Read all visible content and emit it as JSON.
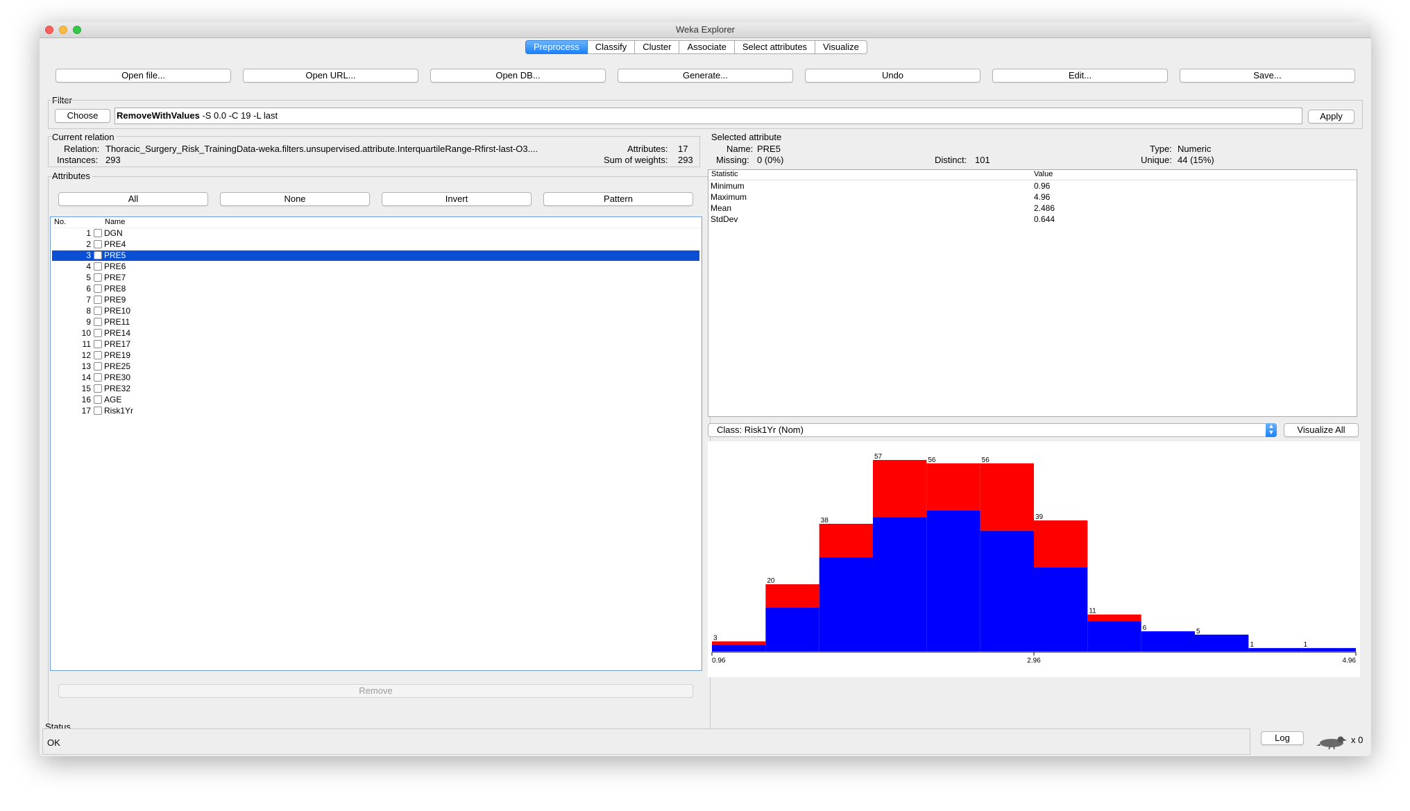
{
  "window": {
    "title": "Weka Explorer"
  },
  "tabs": [
    "Preprocess",
    "Classify",
    "Cluster",
    "Associate",
    "Select attributes",
    "Visualize"
  ],
  "toolbar": {
    "open_file": "Open file...",
    "open_url": "Open URL...",
    "open_db": "Open DB...",
    "generate": "Generate...",
    "undo": "Undo",
    "edit": "Edit...",
    "save": "Save..."
  },
  "filter": {
    "label": "Filter",
    "choose": "Choose",
    "name": "RemoveWithValues",
    "options": "-S 0.0 -C 19 -L last",
    "apply": "Apply"
  },
  "current_relation": {
    "label": "Current relation",
    "relation_label": "Relation:",
    "relation": "Thoracic_Surgery_Risk_TrainingData-weka.filters.unsupervised.attribute.InterquartileRange-Rfirst-last-O3....",
    "instances_label": "Instances:",
    "instances": "293",
    "attributes_label": "Attributes:",
    "attributes": "17",
    "weights_label": "Sum of weights:",
    "weights": "293"
  },
  "attributes_panel": {
    "label": "Attributes",
    "all": "All",
    "none": "None",
    "invert": "Invert",
    "pattern": "Pattern",
    "col_no": "No.",
    "col_name": "Name",
    "items": [
      {
        "no": "1",
        "name": "DGN"
      },
      {
        "no": "2",
        "name": "PRE4"
      },
      {
        "no": "3",
        "name": "PRE5"
      },
      {
        "no": "4",
        "name": "PRE6"
      },
      {
        "no": "5",
        "name": "PRE7"
      },
      {
        "no": "6",
        "name": "PRE8"
      },
      {
        "no": "7",
        "name": "PRE9"
      },
      {
        "no": "8",
        "name": "PRE10"
      },
      {
        "no": "9",
        "name": "PRE11"
      },
      {
        "no": "10",
        "name": "PRE14"
      },
      {
        "no": "11",
        "name": "PRE17"
      },
      {
        "no": "12",
        "name": "PRE19"
      },
      {
        "no": "13",
        "name": "PRE25"
      },
      {
        "no": "14",
        "name": "PRE30"
      },
      {
        "no": "15",
        "name": "PRE32"
      },
      {
        "no": "16",
        "name": "AGE"
      },
      {
        "no": "17",
        "name": "Risk1Yr"
      }
    ],
    "selected_index": 2,
    "remove": "Remove"
  },
  "selected_attribute": {
    "label": "Selected attribute",
    "name_label": "Name:",
    "name": "PRE5",
    "missing_label": "Missing:",
    "missing": "0 (0%)",
    "distinct_label": "Distinct:",
    "distinct": "101",
    "type_label": "Type:",
    "type": "Numeric",
    "unique_label": "Unique:",
    "unique": "44 (15%)",
    "col_statistic": "Statistic",
    "col_value": "Value",
    "stats": [
      {
        "statistic": "Minimum",
        "value": "0.96"
      },
      {
        "statistic": "Maximum",
        "value": "4.96"
      },
      {
        "statistic": "Mean",
        "value": "2.486"
      },
      {
        "statistic": "StdDev",
        "value": "0.644"
      }
    ]
  },
  "class_selector": {
    "value": "Class: Risk1Yr (Nom)",
    "visualize_all": "Visualize All"
  },
  "chart_data": {
    "type": "bar",
    "stacked": true,
    "x_ticks": [
      "0.96",
      "2.96",
      "4.96"
    ],
    "xlim": [
      0.96,
      4.96
    ],
    "bin_count": 12,
    "totals": [
      3,
      20,
      38,
      57,
      56,
      56,
      39,
      11,
      6,
      5,
      1,
      1
    ],
    "series": [
      {
        "color": "#0000ff",
        "values": [
          2,
          13,
          28,
          40,
          42,
          36,
          25,
          9,
          6,
          5,
          1,
          1
        ]
      },
      {
        "color": "#ff0000",
        "values": [
          1,
          7,
          10,
          17,
          14,
          20,
          14,
          2,
          0,
          0,
          0,
          0
        ]
      }
    ]
  },
  "status": {
    "label": "Status",
    "text": "OK",
    "log": "Log",
    "count": "x 0"
  }
}
